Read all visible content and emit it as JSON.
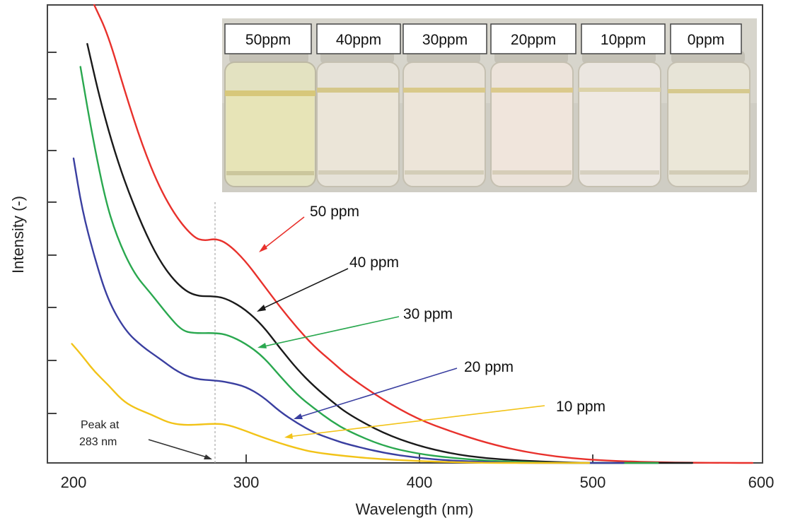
{
  "chart_data": {
    "type": "line",
    "xlabel": "Wavelength (nm)",
    "ylabel": "Intensity (-)",
    "xlim": [
      185,
      600
    ],
    "ylim": [
      0,
      1
    ],
    "x_ticks": [
      200,
      300,
      400,
      500,
      600
    ],
    "y_tick_labels_shown": false,
    "grid": false,
    "series": [
      {
        "name": "50 ppm",
        "color": "#e8312c",
        "x": [
          212,
          220,
          230,
          240,
          250,
          260,
          270,
          276,
          283,
          290,
          300,
          310,
          320,
          330,
          340,
          350,
          360,
          380,
          400,
          420,
          440,
          460,
          480,
          500,
          520,
          540,
          560,
          580,
          595
        ],
        "y": [
          1.0,
          0.936,
          0.809,
          0.693,
          0.601,
          0.535,
          0.492,
          0.485,
          0.49,
          0.478,
          0.441,
          0.391,
          0.341,
          0.295,
          0.254,
          0.222,
          0.189,
          0.138,
          0.096,
          0.068,
          0.044,
          0.026,
          0.014,
          0.007,
          0.0035,
          0.0015,
          0.0005,
          0.0,
          0.0
        ]
      },
      {
        "name": "40 ppm",
        "color": "#1a1a1a",
        "x": [
          208,
          215,
          222,
          230,
          240,
          250,
          260,
          270,
          283,
          290,
          300,
          310,
          320,
          330,
          340,
          350,
          360,
          380,
          400,
          420,
          440,
          460,
          480,
          500,
          520,
          540,
          560
        ],
        "y": [
          0.915,
          0.8,
          0.703,
          0.611,
          0.517,
          0.441,
          0.391,
          0.364,
          0.364,
          0.357,
          0.335,
          0.3,
          0.251,
          0.205,
          0.167,
          0.135,
          0.106,
          0.065,
          0.038,
          0.02,
          0.01,
          0.005,
          0.002,
          0.0,
          0.0,
          0.0,
          0.0
        ]
      },
      {
        "name": "30 ppm",
        "color": "#2aa84f",
        "x": [
          204,
          210,
          218,
          225,
          235,
          245,
          255,
          263,
          270,
          283,
          290,
          300,
          310,
          320,
          330,
          340,
          350,
          360,
          380,
          400,
          420,
          440,
          460,
          480,
          500,
          520,
          540
        ],
        "y": [
          0.865,
          0.733,
          0.582,
          0.495,
          0.414,
          0.37,
          0.322,
          0.289,
          0.283,
          0.284,
          0.279,
          0.261,
          0.233,
          0.19,
          0.149,
          0.119,
          0.091,
          0.069,
          0.037,
          0.02,
          0.011,
          0.005,
          0.002,
          0.0,
          0.0,
          0.0,
          0.0
        ]
      },
      {
        "name": "20 ppm",
        "color": "#3a3fa0",
        "x": [
          200,
          205,
          212,
          220,
          230,
          240,
          250,
          260,
          270,
          283,
          290,
          300,
          310,
          320,
          330,
          340,
          350,
          360,
          380,
          400,
          420,
          440,
          460,
          480,
          500,
          520
        ],
        "y": [
          0.665,
          0.552,
          0.451,
          0.355,
          0.289,
          0.254,
          0.228,
          0.2,
          0.183,
          0.18,
          0.176,
          0.167,
          0.145,
          0.112,
          0.087,
          0.066,
          0.052,
          0.04,
          0.022,
          0.011,
          0.005,
          0.002,
          0.0,
          0.0,
          0.0,
          0.0
        ]
      },
      {
        "name": "10 ppm",
        "color": "#f2c318",
        "x": [
          199,
          205,
          212,
          220,
          228,
          235,
          245,
          255,
          263,
          270,
          283,
          290,
          300,
          310,
          320,
          330,
          340,
          360,
          380,
          400,
          420,
          440,
          460,
          480,
          500
        ],
        "y": [
          0.26,
          0.234,
          0.2,
          0.171,
          0.138,
          0.121,
          0.106,
          0.088,
          0.083,
          0.083,
          0.086,
          0.083,
          0.07,
          0.056,
          0.043,
          0.032,
          0.023,
          0.014,
          0.008,
          0.004,
          0.002,
          0.0,
          0.0,
          0.0,
          0.0
        ]
      }
    ],
    "series_labels": [
      "50 ppm",
      "40 ppm",
      "30 ppm",
      "20 ppm",
      "10 ppm"
    ],
    "annotation": {
      "text_lines": [
        "Peak at",
        "283 nm"
      ],
      "x": 283
    },
    "inset_photo": {
      "vial_labels": [
        "50ppm",
        "40ppm",
        "30ppm",
        "20ppm",
        "10ppm",
        "0ppm"
      ]
    }
  }
}
